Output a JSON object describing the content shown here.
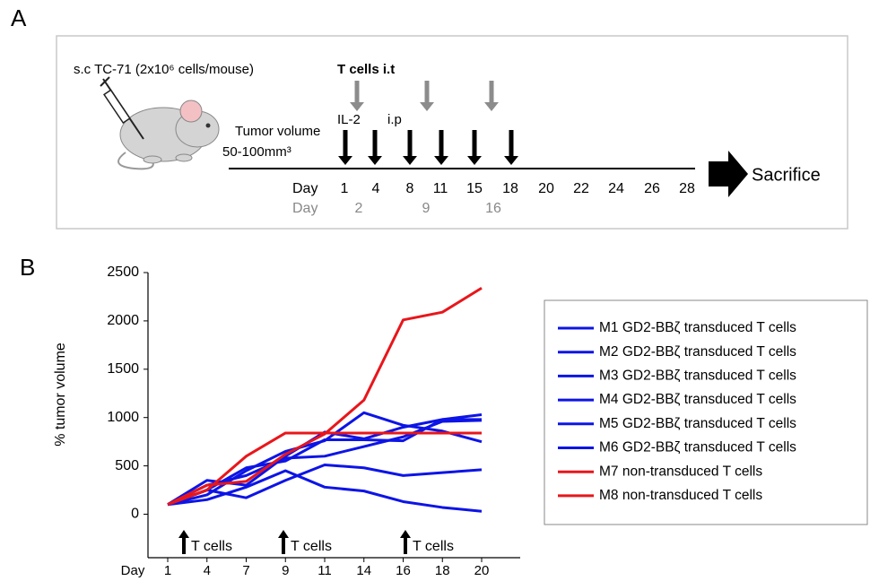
{
  "panel_a": {
    "label": "A",
    "injection": "s.c TC-71 (2x10⁶ cells/mouse)",
    "tcells": "T cells i.t",
    "il2": "IL-2",
    "ip": "i.p",
    "tumor_volume": [
      "Tumor volume",
      "50-100mm³"
    ],
    "day_row": {
      "label": "Day",
      "days": [
        "1",
        "4",
        "8",
        "11",
        "15",
        "18",
        "20",
        "22",
        "24",
        "26",
        "28"
      ]
    },
    "tcell_day_row": {
      "label": "Day",
      "days": [
        "2",
        "9",
        "16"
      ]
    },
    "end": "Sacrifice"
  },
  "chart_data": {
    "type": "line",
    "panel_label": "B",
    "ylabel": "% tumor volume",
    "xlabel": "Day",
    "categories": [
      "1",
      "4",
      "7",
      "9",
      "11",
      "14",
      "16",
      "18",
      "20"
    ],
    "ylim": [
      -450,
      2500
    ],
    "yticks": [
      0,
      500,
      1000,
      1500,
      2000,
      2500
    ],
    "series": [
      {
        "name": "M1 GD2-BBζ transduced T cells",
        "color": "#0d14e6",
        "values": [
          100,
          350,
          300,
          600,
          850,
          780,
          900,
          980,
          1030
        ]
      },
      {
        "name": "M2 GD2-BBζ transduced T cells",
        "color": "#0d14e6",
        "values": [
          100,
          200,
          450,
          650,
          760,
          1050,
          920,
          860,
          750
        ]
      },
      {
        "name": "M3 GD2-BBζ transduced T cells",
        "color": "#0d14e6",
        "values": [
          100,
          300,
          400,
          580,
          600,
          700,
          800,
          960,
          970
        ]
      },
      {
        "name": "M4 GD2-BBζ transduced T cells",
        "color": "#0d14e6",
        "values": [
          100,
          250,
          170,
          350,
          510,
          480,
          400,
          430,
          460
        ]
      },
      {
        "name": "M5 GD2-BBζ transduced T cells",
        "color": "#0d14e6",
        "values": [
          100,
          150,
          280,
          450,
          280,
          240,
          130,
          70,
          30
        ]
      },
      {
        "name": "M6 GD2-BBζ transduced T cells",
        "color": "#0d14e6",
        "values": [
          100,
          250,
          480,
          550,
          770,
          770,
          760,
          980,
          980
        ]
      },
      {
        "name": "M7 non-transduced T cells",
        "color": "#e8161b",
        "values": [
          100,
          250,
          600,
          840,
          840,
          840,
          840,
          840,
          840
        ]
      },
      {
        "name": "M8 non-transduced T cells",
        "color": "#e8161b",
        "values": [
          100,
          300,
          340,
          620,
          830,
          1180,
          2010,
          2090,
          2340
        ]
      }
    ],
    "annotations": [
      "T cells",
      "T cells",
      "T cells"
    ]
  }
}
